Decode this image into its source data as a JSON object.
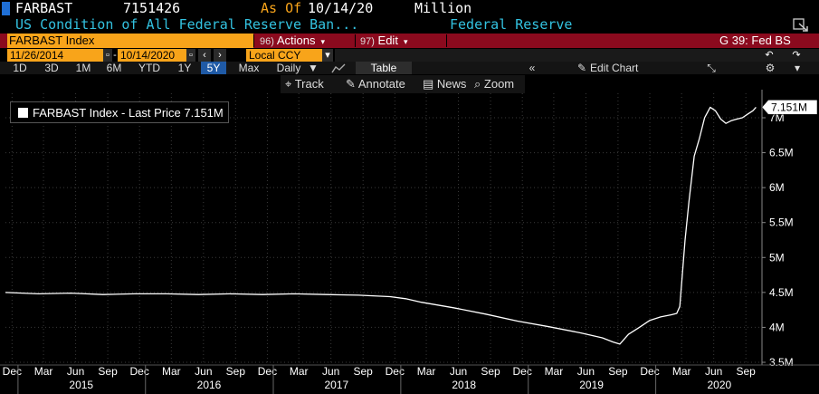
{
  "header": {
    "ticker": "FARBAST",
    "value": "7151426",
    "as_of_label": "As Of",
    "as_of_date": "10/14/20",
    "units": "Million",
    "description": "US Condition of All Federal Reserve Ban...",
    "source": "Federal Reserve",
    "accent_color": "#1f6fd6"
  },
  "function_bar": {
    "security": "FARBAST Index",
    "actions_num": "96)",
    "actions_label": "Actions",
    "edit_num": "97)",
    "edit_label": "Edit",
    "function_code": "G 39: Fed BS"
  },
  "date_bar": {
    "start_date": "11/26/2014",
    "end_date": "10/14/2020",
    "currency": "Local CCY",
    "prev_icon": "chevron-left-icon",
    "next_icon": "chevron-right-icon"
  },
  "range_bar": {
    "ranges": [
      "1D",
      "3D",
      "1M",
      "6M",
      "YTD",
      "1Y",
      "5Y",
      "Max"
    ],
    "active_range": "5Y",
    "frequency": "Daily",
    "table_label": "Table",
    "edit_chart_label": "Edit Chart"
  },
  "toolbar": {
    "track": "Track",
    "annotate": "Annotate",
    "news": "News",
    "zoom": "Zoom"
  },
  "legend": {
    "label": "FARBAST Index - Last Price 7.151M"
  },
  "chart_data": {
    "type": "line",
    "ylim": [
      3.5,
      7.35
    ],
    "yticks": [
      3.5,
      4,
      4.5,
      5,
      5.5,
      6,
      6.5,
      7
    ],
    "ytick_labels": [
      "3.5M",
      "4M",
      "4.5M",
      "5M",
      "5.5M",
      "6M",
      "6.5M",
      "7M"
    ],
    "last_value_label": "7.151M",
    "x_month_labels": [
      "Dec",
      "Mar",
      "Jun",
      "Sep",
      "Dec",
      "Mar",
      "Jun",
      "Sep",
      "Dec",
      "Mar",
      "Jun",
      "Sep",
      "Dec",
      "Mar",
      "Jun",
      "Sep",
      "Dec",
      "Mar",
      "Jun",
      "Sep",
      "Dec",
      "Mar",
      "Jun",
      "Sep"
    ],
    "x_year_labels": [
      "2015",
      "2016",
      "2017",
      "2018",
      "2019",
      "2020"
    ],
    "series": [
      {
        "color": "#ffffff",
        "x": [
          "2014-11-26",
          "2015-03-01",
          "2015-06-01",
          "2015-09-01",
          "2015-12-01",
          "2016-03-01",
          "2016-06-01",
          "2016-09-01",
          "2016-12-01",
          "2017-03-01",
          "2017-06-01",
          "2017-09-01",
          "2017-12-01",
          "2018-01-15",
          "2018-03-01",
          "2018-06-01",
          "2018-09-01",
          "2018-12-01",
          "2019-03-01",
          "2019-06-01",
          "2019-08-01",
          "2019-09-01",
          "2019-09-20",
          "2019-10-15",
          "2019-11-15",
          "2019-12-15",
          "2020-01-15",
          "2020-02-15",
          "2020-03-01",
          "2020-03-10",
          "2020-03-25",
          "2020-04-05",
          "2020-04-20",
          "2020-05-05",
          "2020-05-20",
          "2020-06-05",
          "2020-06-20",
          "2020-07-05",
          "2020-07-20",
          "2020-08-05",
          "2020-08-20",
          "2020-09-05",
          "2020-09-20",
          "2020-10-05",
          "2020-10-14"
        ],
        "y": [
          4.5,
          4.48,
          4.49,
          4.47,
          4.48,
          4.48,
          4.47,
          4.48,
          4.47,
          4.48,
          4.47,
          4.46,
          4.44,
          4.41,
          4.36,
          4.28,
          4.19,
          4.09,
          4.01,
          3.92,
          3.85,
          3.79,
          3.76,
          3.9,
          4.0,
          4.1,
          4.15,
          4.18,
          4.2,
          4.3,
          5.25,
          5.8,
          6.45,
          6.7,
          7.0,
          7.15,
          7.1,
          6.98,
          6.92,
          6.96,
          6.98,
          7.0,
          7.05,
          7.1,
          7.151
        ]
      }
    ]
  }
}
